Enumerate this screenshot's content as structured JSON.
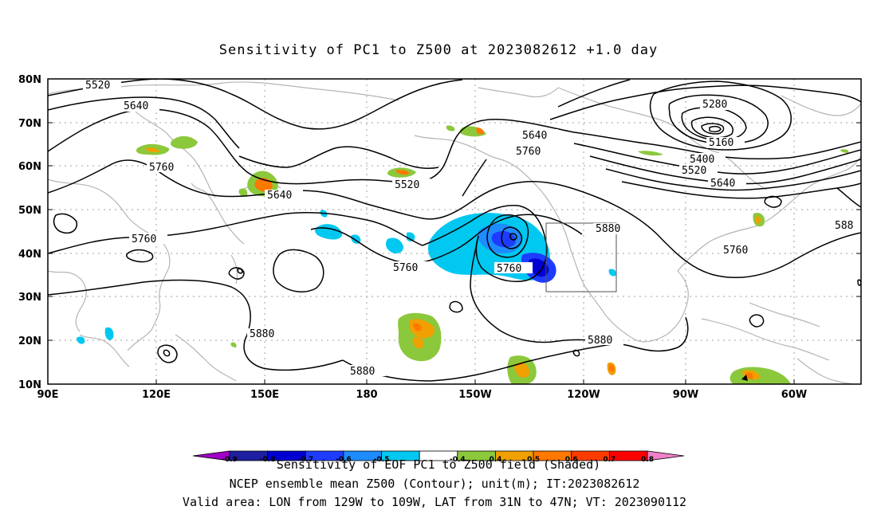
{
  "title": "Sensitivity of PC1 to Z500 at 2023082612 +1.0 day",
  "lat_ticks": [
    "80N",
    "70N",
    "60N",
    "50N",
    "40N",
    "30N",
    "20N",
    "10N"
  ],
  "lon_ticks": [
    "90E",
    "120E",
    "150E",
    "180",
    "150W",
    "120W",
    "90W",
    "60W"
  ],
  "contour_labels": {
    "c5520a": "5520",
    "c5640a": "5640",
    "c5760a": "5760",
    "c5640b": "5640",
    "c5760b": "5760",
    "c5520b": "5520",
    "c5640c": "5640",
    "c5760c": "5760",
    "c5280": "5280",
    "c5160": "5160",
    "c5400": "5400",
    "c5520c": "5520",
    "c5640d": "5640",
    "c5880a": "5880",
    "c588": "588",
    "c5760d": "5760",
    "c5760e": "5760",
    "c5760f": "5760",
    "c5880b": "5880",
    "c5880c": "5880",
    "c5880d": "5880"
  },
  "colorbar": {
    "labels": [
      "-0.9",
      "-0.8",
      "-0.7",
      "-0.6",
      "-0.5",
      "-0.4",
      "0.4",
      "0.5",
      "0.6",
      "0.7",
      "0.8",
      "0.9"
    ],
    "colors": [
      "#a000c8",
      "#1e1ea0",
      "#0000d2",
      "#1e3cff",
      "#1e8cff",
      "#00c8f0",
      "#ffffff",
      "#8cc83c",
      "#f0a000",
      "#ff7800",
      "#ff3c00",
      "#ff0000",
      "#f080c8"
    ],
    "caption": "Sensitivity of EOF PC1 to Z500 field (Shaded)"
  },
  "footer": {
    "line1": "NCEP ensemble mean Z500 (Contour); unit(m); IT:2023082612",
    "line2": "Valid area: LON from 129W to 109W, LAT from 31N to 47N; VT: 2023090112"
  }
}
